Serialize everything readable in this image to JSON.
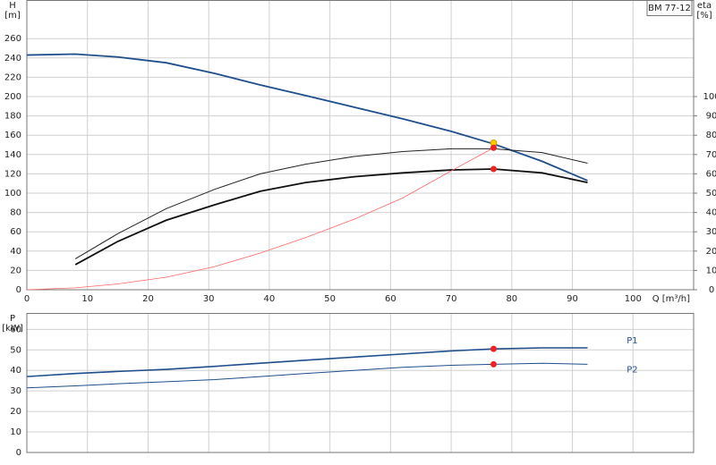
{
  "chart_data": [
    {
      "type": "line",
      "title": "BM 77-12",
      "xlabel": "Q [m³/h]",
      "ylabel": "H",
      "yunit": "[m]",
      "y2label": "eta",
      "y2unit": "[%]",
      "xlim": [
        0,
        110
      ],
      "xticks": [
        0,
        10,
        20,
        30,
        40,
        50,
        60,
        70,
        80,
        90,
        100
      ],
      "ylim": [
        0,
        300
      ],
      "yticks": [
        0,
        20,
        40,
        60,
        80,
        100,
        120,
        140,
        160,
        180,
        200,
        220,
        240,
        260
      ],
      "y2lim": [
        0,
        150
      ],
      "y2ticks": [
        0,
        10,
        20,
        30,
        40,
        50,
        60,
        70,
        80,
        90,
        100
      ],
      "grid": true,
      "series": [
        {
          "color": "#1f4e8c",
          "line_width": 1.8,
          "x": [
            0,
            8,
            15,
            23,
            31,
            38.5,
            46,
            54,
            62,
            70,
            77,
            85,
            92.5
          ],
          "values": [
            243,
            244,
            241,
            235,
            224,
            212,
            201,
            189,
            177,
            164,
            151,
            133,
            113
          ]
        },
        {
          "color": "#222222",
          "line_width": 1,
          "axis": "y2",
          "x": [
            8,
            15,
            23,
            31,
            38.5,
            46,
            54,
            62,
            70,
            77,
            85,
            92.5
          ],
          "values": [
            16,
            29,
            42,
            52,
            60,
            65,
            69,
            71.5,
            73,
            73,
            71,
            65.5
          ]
        },
        {
          "color": "#111111",
          "line_width": 1.8,
          "axis": "y2",
          "x": [
            8,
            15,
            23,
            31,
            38.5,
            46,
            54,
            62,
            70,
            77,
            85,
            92.5
          ],
          "values": [
            13,
            25,
            36,
            44,
            51,
            55.5,
            58.5,
            60.5,
            62,
            62.5,
            60.5,
            55.5
          ]
        },
        {
          "color": "#ff6666",
          "line_width": 0.8,
          "x": [
            0,
            8,
            15,
            23,
            31,
            38.5,
            46,
            54,
            62,
            70,
            77
          ],
          "values": [
            0,
            2,
            6,
            13,
            24,
            38,
            54,
            73,
            95,
            123,
            147
          ]
        }
      ],
      "points": [
        {
          "x": 77,
          "y": 152,
          "color": "#ffcc00"
        },
        {
          "x": 77,
          "y": 147,
          "color": "#ee2222"
        },
        {
          "x": 77,
          "y": 62.5,
          "axis": "y2",
          "color": "#ee2222"
        }
      ]
    },
    {
      "type": "line",
      "ylabel": "P",
      "yunit": "[kW]",
      "xlim": [
        0,
        110
      ],
      "xticks": [
        0,
        10,
        20,
        30,
        40,
        50,
        60,
        70,
        80,
        90,
        100
      ],
      "ylim": [
        0,
        68
      ],
      "yticks": [
        0,
        10,
        20,
        30,
        40,
        50,
        60
      ],
      "grid": true,
      "series": [
        {
          "name": "P1",
          "color": "#1f4e8c",
          "line_width": 1.6,
          "x": [
            0,
            8,
            15,
            23,
            31,
            38.5,
            46,
            54,
            62,
            70,
            77,
            85,
            92.5
          ],
          "values": [
            37,
            38.5,
            39.5,
            40.5,
            42,
            43.5,
            45,
            46.5,
            48,
            49.5,
            50.5,
            51,
            51
          ]
        },
        {
          "name": "P2",
          "color": "#1f4e8c",
          "line_width": 1,
          "x": [
            0,
            8,
            15,
            23,
            31,
            38.5,
            46,
            54,
            62,
            70,
            77,
            85,
            92.5
          ],
          "values": [
            31.5,
            32.5,
            33.5,
            34.5,
            35.5,
            37,
            38.5,
            40,
            41.5,
            42.5,
            43,
            43.5,
            43
          ]
        }
      ],
      "points": [
        {
          "x": 77,
          "y": 50.5,
          "color": "#ee2222"
        },
        {
          "x": 77,
          "y": 43,
          "color": "#ee2222"
        }
      ]
    }
  ]
}
